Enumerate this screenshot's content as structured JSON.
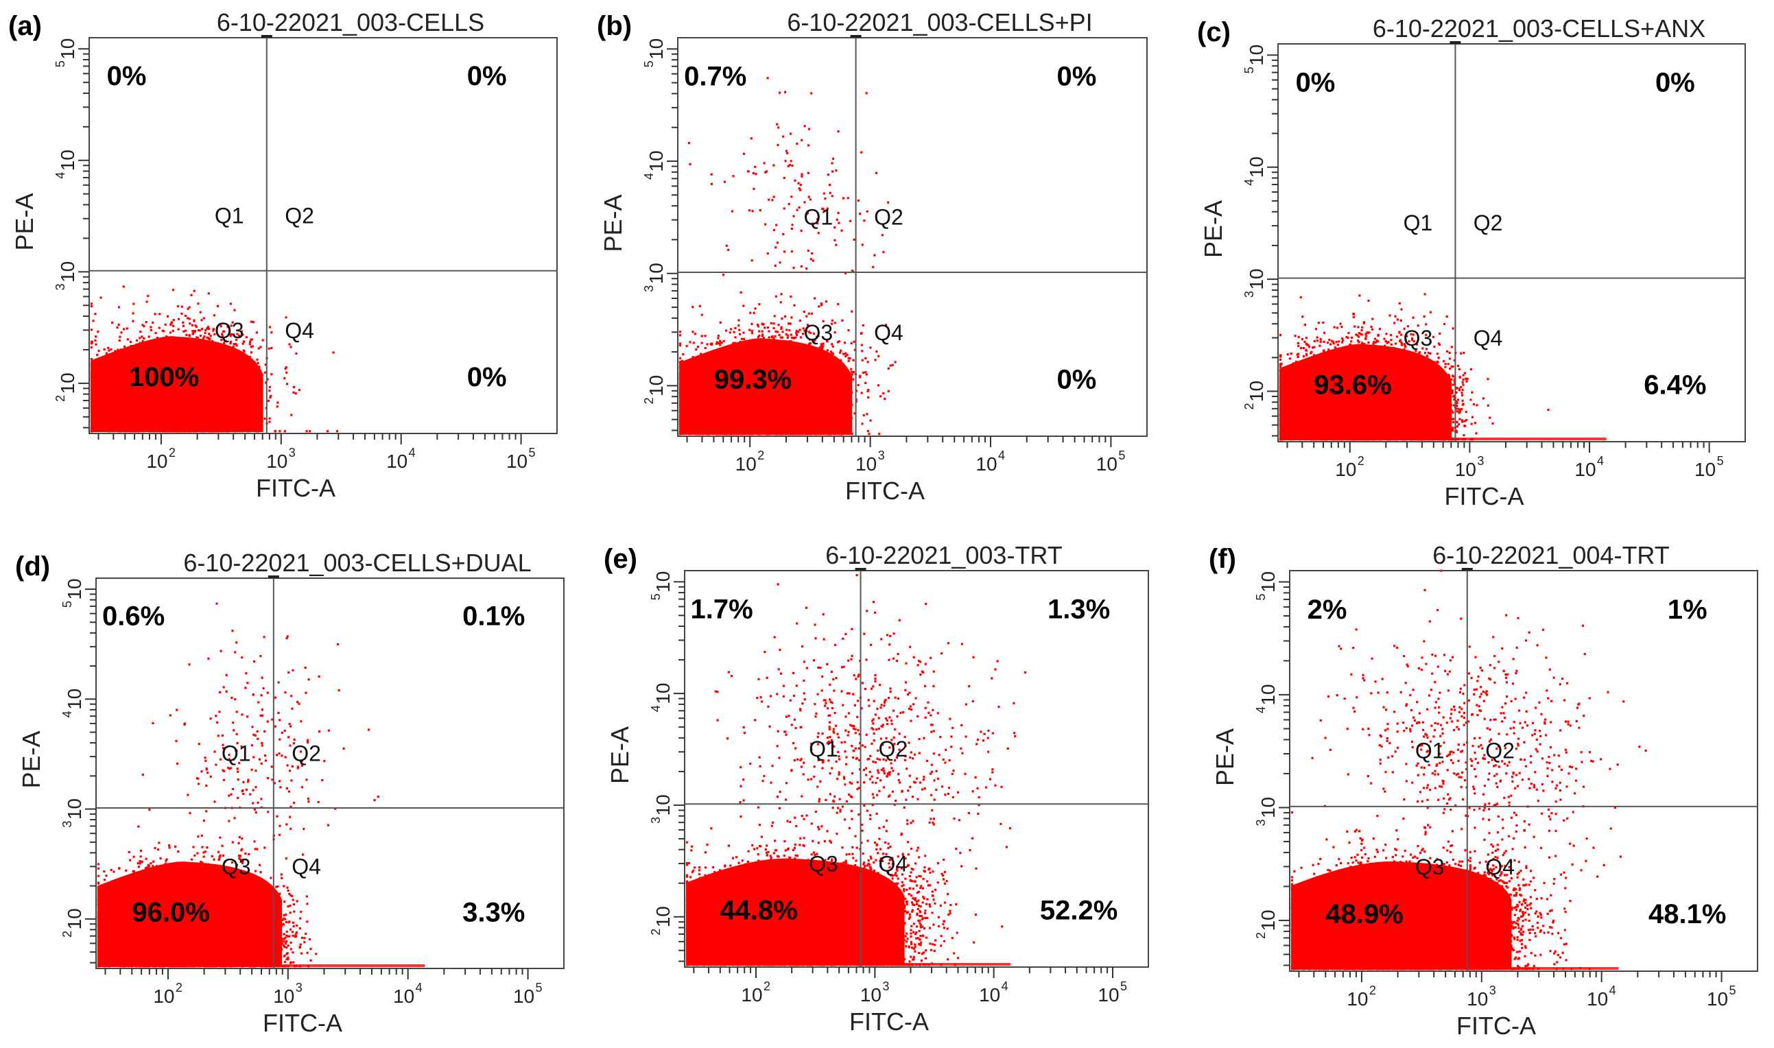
{
  "chart_data": [
    {
      "type": "scatter",
      "panel": "(a)",
      "title": "6-10-22021_003-CELLS",
      "xlabel": "FITC-A",
      "ylabel": "PE-A",
      "x_ticks": [
        "10",
        "10",
        "10",
        "10"
      ],
      "x_tick_exponents": [
        "2",
        "3",
        "4",
        "5"
      ],
      "y_ticks": [
        "10",
        "10",
        "10",
        "10"
      ],
      "y_tick_exponents": [
        "2",
        "3",
        "4",
        "5"
      ],
      "quadrant_labels": [
        "Q1",
        "Q2",
        "Q3",
        "Q4"
      ],
      "quadrant_percentages": {
        "Q1": "0%",
        "Q2": "0%",
        "Q3": "100%",
        "Q4": "0%"
      },
      "gate_log": {
        "x": 2.88,
        "y": 3.01
      },
      "point_color": "#ff0000"
    },
    {
      "type": "scatter",
      "panel": "(b)",
      "title": "6-10-22021_003-CELLS+PI",
      "xlabel": "FITC-A",
      "ylabel": "PE-A",
      "x_ticks": [
        "10",
        "10",
        "10",
        "10"
      ],
      "x_tick_exponents": [
        "2",
        "3",
        "4",
        "5"
      ],
      "y_ticks": [
        "10",
        "10",
        "10",
        "10"
      ],
      "y_tick_exponents": [
        "2",
        "3",
        "4",
        "5"
      ],
      "quadrant_labels": [
        "Q1",
        "Q2",
        "Q3",
        "Q4"
      ],
      "quadrant_percentages": {
        "Q1": "0.7%",
        "Q2": "0%",
        "Q3": "99.3%",
        "Q4": "0%"
      },
      "gate_log": {
        "x": 2.88,
        "y": 3.01
      },
      "point_color": "#ff0000"
    },
    {
      "type": "scatter",
      "panel": "(c)",
      "title": "6-10-22021_003-CELLS+ANX",
      "xlabel": "FITC-A",
      "ylabel": "PE-A",
      "x_ticks": [
        "10",
        "10",
        "10",
        "10"
      ],
      "x_tick_exponents": [
        "2",
        "3",
        "4",
        "5"
      ],
      "y_ticks": [
        "10",
        "10",
        "10",
        "10"
      ],
      "y_tick_exponents": [
        "2",
        "3",
        "4",
        "5"
      ],
      "quadrant_labels": [
        "Q1",
        "Q2",
        "Q3",
        "Q4"
      ],
      "quadrant_percentages": {
        "Q1": "0%",
        "Q2": "0%",
        "Q3": "93.6%",
        "Q4": "6.4%"
      },
      "gate_log": {
        "x": 2.88,
        "y": 3.01
      },
      "point_color": "#ff0000"
    },
    {
      "type": "scatter",
      "panel": "(d)",
      "title": "6-10-22021_003-CELLS+DUAL",
      "xlabel": "FITC-A",
      "ylabel": "PE-A",
      "x_ticks": [
        "10",
        "10",
        "10",
        "10"
      ],
      "x_tick_exponents": [
        "2",
        "3",
        "4",
        "5"
      ],
      "y_ticks": [
        "10",
        "10",
        "10",
        "10"
      ],
      "y_tick_exponents": [
        "2",
        "3",
        "4",
        "5"
      ],
      "quadrant_labels": [
        "Q1",
        "Q2",
        "Q3",
        "Q4"
      ],
      "quadrant_percentages": {
        "Q1": "0.6%",
        "Q2": "0.1%",
        "Q3": "96.0%",
        "Q4": "3.3%"
      },
      "gate_log": {
        "x": 2.88,
        "y": 3.01
      },
      "point_color": "#ff0000"
    },
    {
      "type": "scatter",
      "panel": "(e)",
      "title": "6-10-22021_003-TRT",
      "xlabel": "FITC-A",
      "ylabel": "PE-A",
      "x_ticks": [
        "10",
        "10",
        "10",
        "10"
      ],
      "x_tick_exponents": [
        "2",
        "3",
        "4",
        "5"
      ],
      "y_ticks": [
        "10",
        "10",
        "10",
        "10"
      ],
      "y_tick_exponents": [
        "2",
        "3",
        "4",
        "5"
      ],
      "quadrant_labels": [
        "Q1",
        "Q2",
        "Q3",
        "Q4"
      ],
      "quadrant_percentages": {
        "Q1": "1.7%",
        "Q2": "1.3%",
        "Q3": "44.8%",
        "Q4": "52.2%"
      },
      "gate_log": {
        "x": 2.88,
        "y": 3.01
      },
      "point_color": "#ff0000"
    },
    {
      "type": "scatter",
      "panel": "(f)",
      "title": "6-10-22021_004-TRT",
      "xlabel": "FITC-A",
      "ylabel": "PE-A",
      "x_ticks": [
        "10",
        "10",
        "10",
        "10"
      ],
      "x_tick_exponents": [
        "2",
        "3",
        "4",
        "5"
      ],
      "y_ticks": [
        "10",
        "10",
        "10",
        "10"
      ],
      "y_tick_exponents": [
        "2",
        "3",
        "4",
        "5"
      ],
      "quadrant_labels": [
        "Q1",
        "Q2",
        "Q3",
        "Q4"
      ],
      "quadrant_percentages": {
        "Q1": "2%",
        "Q2": "1%",
        "Q3": "48.9%",
        "Q4": "48.1%"
      },
      "gate_log": {
        "x": 2.88,
        "y": 3.01
      },
      "point_color": "#ff0000"
    }
  ]
}
